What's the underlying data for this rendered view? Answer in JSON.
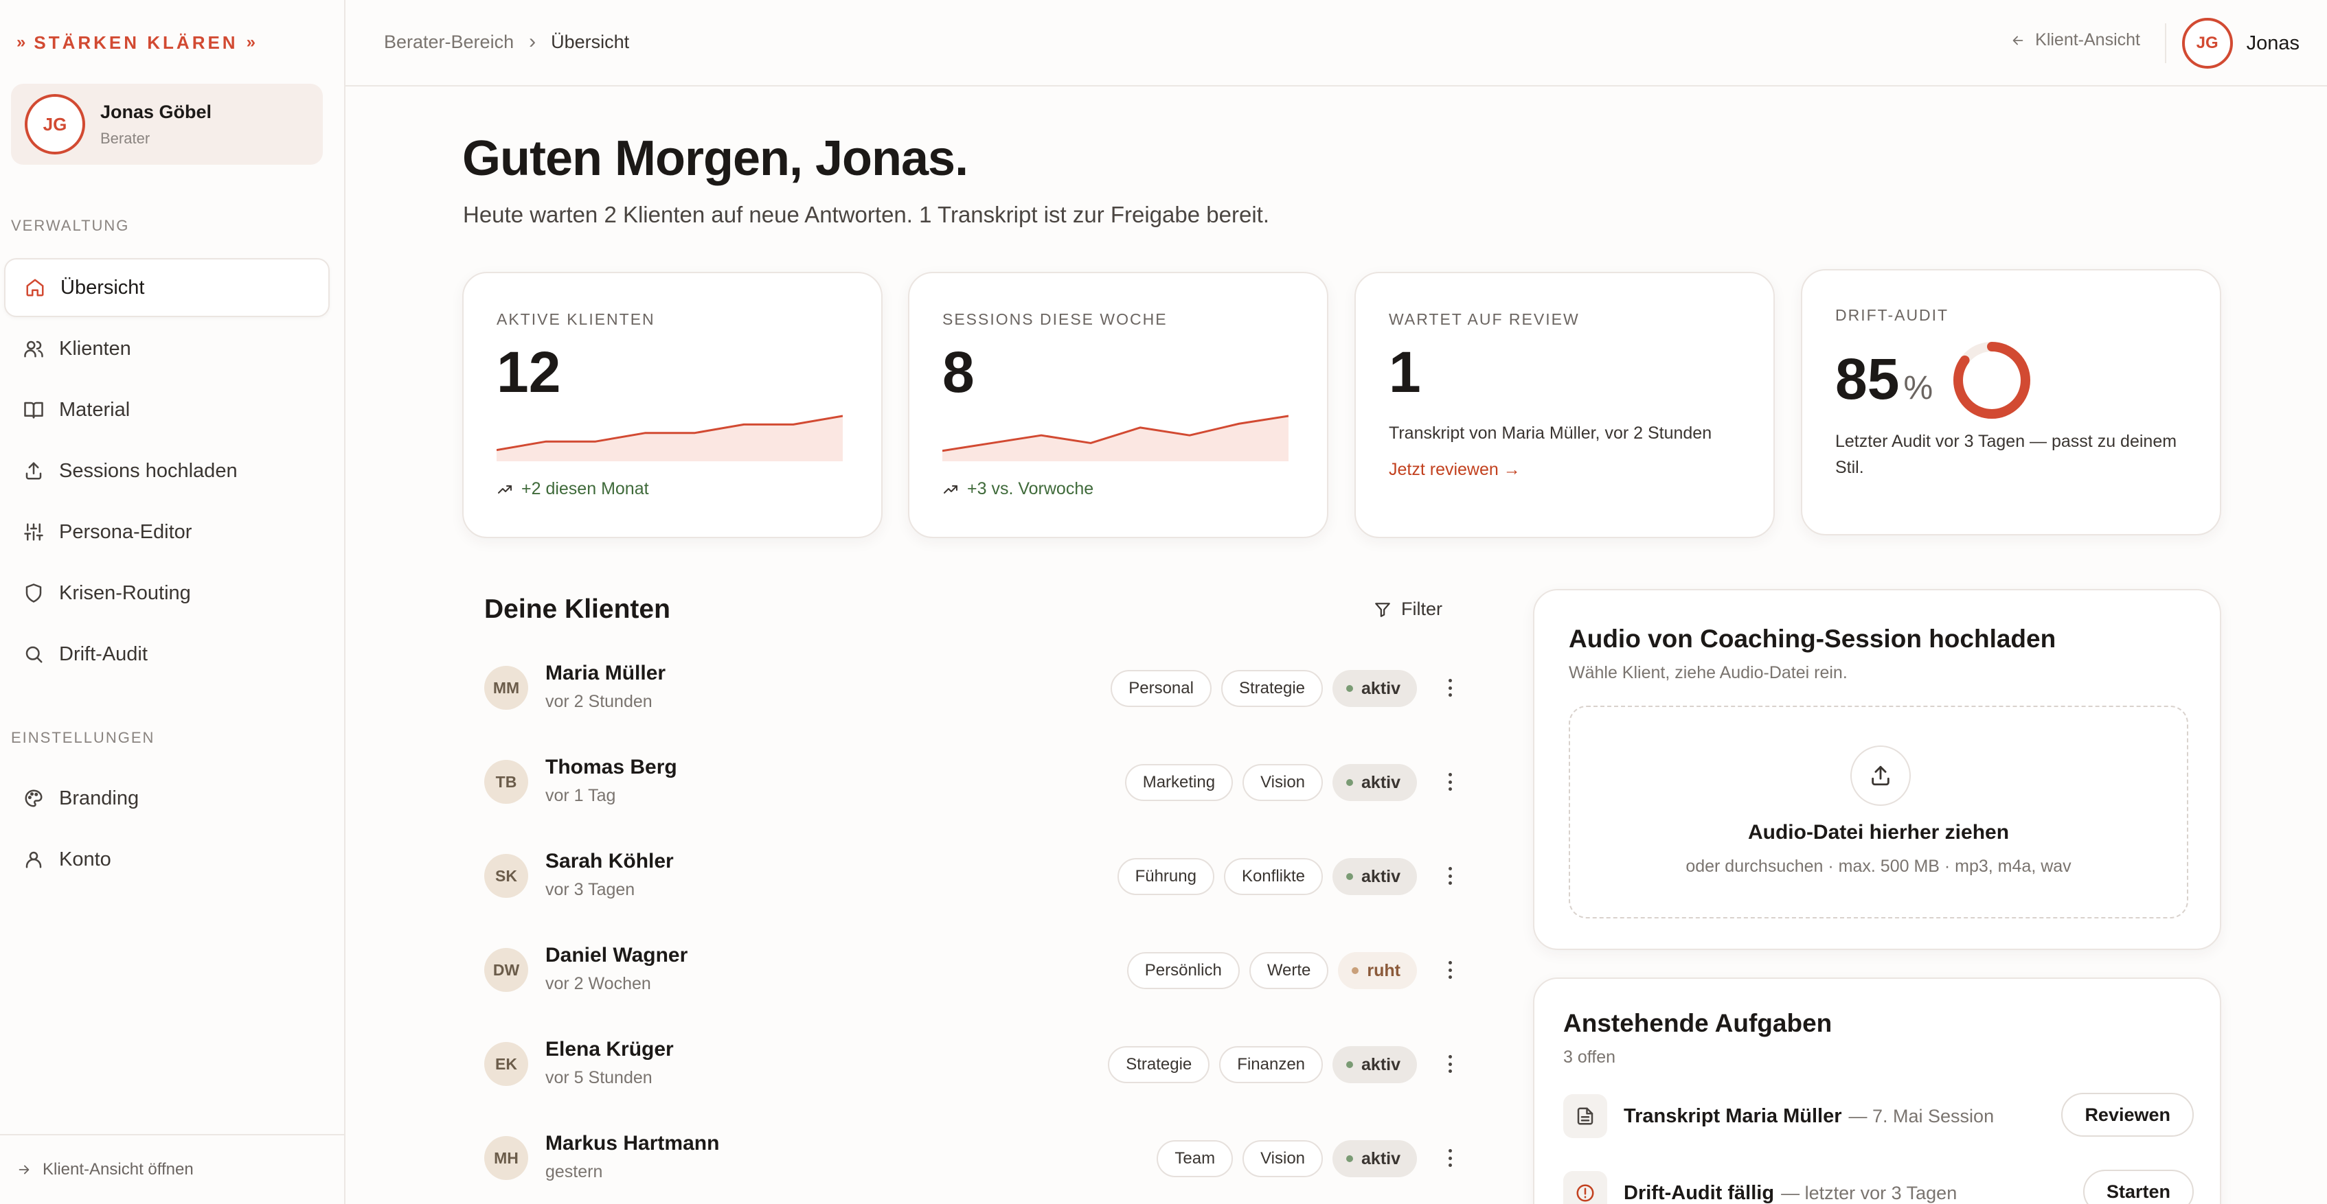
{
  "brand": {
    "name": "STÄRKEN KLÄREN",
    "chevron": "»"
  },
  "user": {
    "initials": "JG",
    "name": "Jonas Göbel",
    "role": "Berater",
    "first_name": "Jonas"
  },
  "sidebar": {
    "section_admin": "VERWALTUNG",
    "section_settings": "EINSTELLUNGEN",
    "items": [
      {
        "label": "Übersicht",
        "icon": "home-icon",
        "active": true
      },
      {
        "label": "Klienten",
        "icon": "users-icon"
      },
      {
        "label": "Material",
        "icon": "book-icon"
      },
      {
        "label": "Sessions hochladen",
        "icon": "upload-icon"
      },
      {
        "label": "Persona-Editor",
        "icon": "sliders-icon"
      },
      {
        "label": "Krisen-Routing",
        "icon": "shield-icon"
      },
      {
        "label": "Drift-Audit",
        "icon": "search-icon"
      }
    ],
    "settings_items": [
      {
        "label": "Branding",
        "icon": "palette-icon"
      },
      {
        "label": "Konto",
        "icon": "user-icon"
      }
    ],
    "footer": "Klient-Ansicht öffnen"
  },
  "topbar": {
    "breadcrumb_root": "Berater-Bereich",
    "breadcrumb_sep": "›",
    "breadcrumb_current": "Übersicht",
    "client_view": "Klient-Ansicht"
  },
  "main": {
    "greeting": "Guten Morgen, Jonas.",
    "subline": "Heute warten 2 Klienten auf neue Antworten. 1 Transkript ist zur Freigabe bereit."
  },
  "stats": {
    "active_clients": {
      "label": "AKTIVE KLIENTEN",
      "value": "12",
      "trend": "+2 diesen Monat",
      "spark": [
        2,
        4,
        4,
        6,
        6,
        8,
        8,
        10
      ]
    },
    "sessions_week": {
      "label": "SESSIONS DIESE WOCHE",
      "value": "8",
      "trend": "+3 vs. Vorwoche",
      "spark": [
        2,
        4,
        6,
        4,
        8,
        6,
        9,
        11
      ]
    },
    "review": {
      "label": "WARTET AUF REVIEW",
      "value": "1",
      "desc": "Transkript von Maria Müller, vor 2 Stunden",
      "link": "Jetzt reviewen →"
    },
    "drift": {
      "label": "DRIFT-AUDIT",
      "value": "85",
      "unit": "%",
      "percent": 85,
      "desc": "Letzter Audit vor 3 Tagen — passt zu deinem Stil."
    }
  },
  "clients": {
    "title": "Deine Klienten",
    "filter": "Filter",
    "rows": [
      {
        "initials": "MM",
        "name": "Maria Müller",
        "time": "vor 2 Stunden",
        "tags": [
          "Personal",
          "Strategie"
        ],
        "status": "aktiv"
      },
      {
        "initials": "TB",
        "name": "Thomas Berg",
        "time": "vor 1 Tag",
        "tags": [
          "Marketing",
          "Vision"
        ],
        "status": "aktiv"
      },
      {
        "initials": "SK",
        "name": "Sarah Köhler",
        "time": "vor 3 Tagen",
        "tags": [
          "Führung",
          "Konflikte"
        ],
        "status": "aktiv"
      },
      {
        "initials": "DW",
        "name": "Daniel Wagner",
        "time": "vor 2 Wochen",
        "tags": [
          "Persönlich",
          "Werte"
        ],
        "status": "ruht"
      },
      {
        "initials": "EK",
        "name": "Elena Krüger",
        "time": "vor 5 Stunden",
        "tags": [
          "Strategie",
          "Finanzen"
        ],
        "status": "aktiv"
      },
      {
        "initials": "MH",
        "name": "Markus Hartmann",
        "time": "gestern",
        "tags": [
          "Team",
          "Vision"
        ],
        "status": "aktiv"
      }
    ]
  },
  "upload": {
    "title": "Audio von Coaching-Session hochladen",
    "subtitle": "Wähle Klient, ziehe Audio-Datei rein.",
    "drop_title": "Audio-Datei hierher ziehen",
    "drop_sub": "oder durchsuchen · max. 500 MB · mp3, m4a, wav"
  },
  "tasks": {
    "title": "Anstehende Aufgaben",
    "count": "3 offen",
    "items": [
      {
        "title": "Transkript Maria Müller",
        "meta": "— 7. Mai Session",
        "button": "Reviewen",
        "icon": "document-icon"
      },
      {
        "title": "Drift-Audit fällig",
        "meta": "— letzter vor 3 Tagen",
        "button": "Starten",
        "icon": "alert-icon"
      }
    ]
  },
  "colors": {
    "accent": "#d24a32",
    "trend_green": "#3f6a3a",
    "spark_fill": "#fbe7e2"
  }
}
